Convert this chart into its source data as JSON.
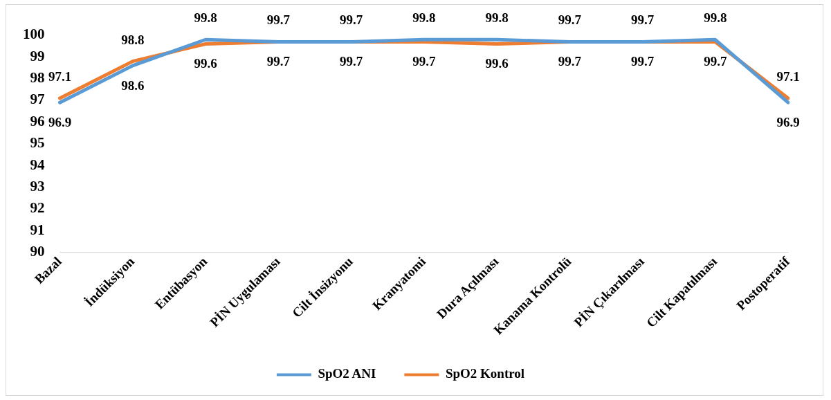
{
  "chart_data": {
    "type": "line",
    "categories": [
      "Bazal",
      "İndüksiyon",
      "Entübasyon",
      "PİN Uygulaması",
      "Cilt İnsizyonu",
      "Kranyatomi",
      "Dura Açılması",
      "Kanama Kontrolü",
      "PİN Çıkarılması",
      "Cilt Kapatılması",
      "Postoperatif"
    ],
    "series": [
      {
        "name": "SpO2 ANI",
        "color": "#5b9bd5",
        "values": [
          96.9,
          98.6,
          99.8,
          99.7,
          99.7,
          99.8,
          99.8,
          99.7,
          99.7,
          99.8,
          96.9
        ]
      },
      {
        "name": "SpO2 Kontrol",
        "color": "#ed7d31",
        "values": [
          97.1,
          98.8,
          99.6,
          99.7,
          99.7,
          99.7,
          99.6,
          99.7,
          99.7,
          99.7,
          97.1
        ]
      }
    ],
    "ylim": [
      90,
      100
    ],
    "yticks": [
      90,
      91,
      92,
      93,
      94,
      95,
      96,
      97,
      98,
      99,
      100
    ],
    "grid": false,
    "legend": "bottom",
    "marker": "none",
    "line_style": "solid",
    "data_labels": true
  }
}
